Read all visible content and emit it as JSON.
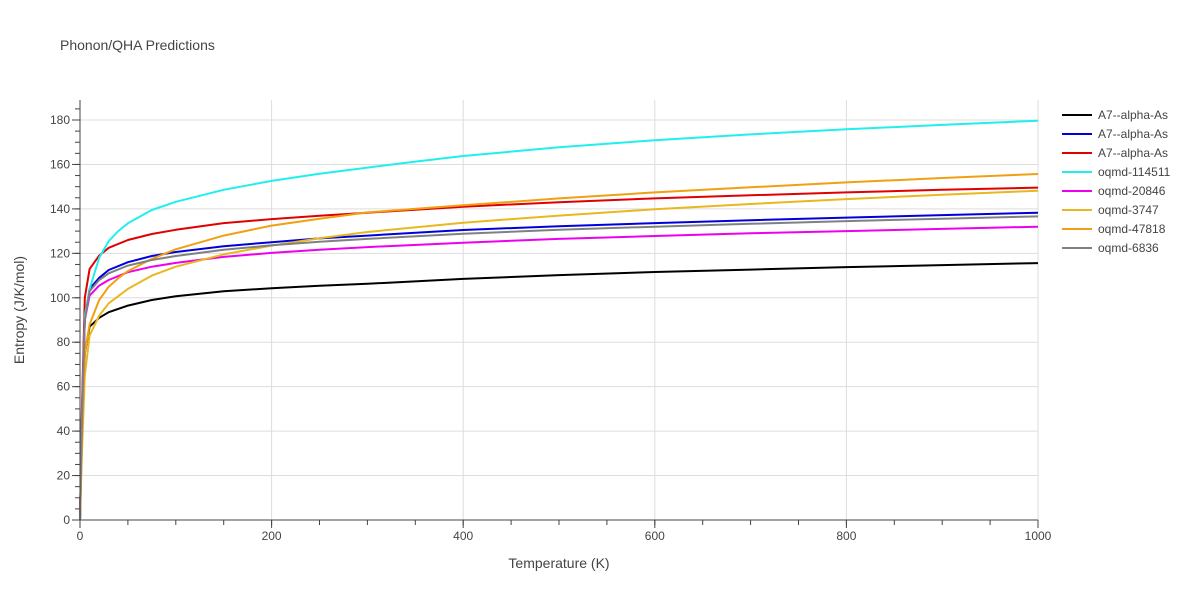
{
  "chart_data": {
    "type": "line",
    "title": "Phonon/QHA Predictions",
    "xlabel": "Temperature (K)",
    "ylabel": "Entropy (J/K/mol)",
    "xlim": [
      0,
      1000
    ],
    "ylim": [
      0,
      189
    ],
    "xticks": [
      0,
      200,
      400,
      600,
      800,
      1000
    ],
    "yticks": [
      0,
      20,
      40,
      60,
      80,
      100,
      120,
      140,
      160,
      180
    ],
    "grid": true,
    "legend_position": "right",
    "series": [
      {
        "name": "A7--alpha-As",
        "color": "#000000",
        "x": [
          0,
          2,
          5,
          10,
          20,
          30,
          50,
          75,
          100,
          150,
          200,
          250,
          300,
          400,
          500,
          600,
          700,
          800,
          900,
          1000
        ],
        "y": [
          0,
          40,
          75,
          87,
          91,
          93.5,
          96.5,
          99,
          100.7,
          102.9,
          104.3,
          105.4,
          106.3,
          108.5,
          110.2,
          111.6,
          112.7,
          113.8,
          114.7,
          115.6
        ]
      },
      {
        "name": "A7--alpha-As",
        "color": "#0000dd",
        "x": [
          0,
          2,
          5,
          10,
          20,
          30,
          50,
          75,
          100,
          150,
          200,
          250,
          300,
          400,
          500,
          600,
          700,
          800,
          900,
          1000
        ],
        "y": [
          0,
          45,
          90,
          104,
          109,
          112.5,
          116,
          118.8,
          120.6,
          123.2,
          125,
          126.7,
          128,
          130.5,
          132.2,
          133.6,
          134.9,
          136.1,
          137.2,
          138.3
        ]
      },
      {
        "name": "A7--alpha-As",
        "color": "#e00000",
        "x": [
          0,
          2,
          5,
          10,
          20,
          30,
          50,
          75,
          100,
          150,
          200,
          250,
          300,
          400,
          500,
          600,
          700,
          800,
          900,
          1000
        ],
        "y": [
          0,
          50,
          100,
          113,
          119,
          122.5,
          126,
          128.7,
          130.6,
          133.6,
          135.4,
          136.9,
          138.3,
          141,
          143,
          144.7,
          146.1,
          147.4,
          148.6,
          149.6
        ]
      },
      {
        "name": "oqmd-114511",
        "color": "#22eeee",
        "x": [
          0,
          2,
          5,
          10,
          20,
          30,
          40,
          50,
          75,
          100,
          150,
          200,
          250,
          300,
          350,
          400,
          500,
          600,
          700,
          800,
          900,
          1000
        ],
        "y": [
          0,
          45,
          92,
          104,
          118,
          125.5,
          130,
          133.5,
          139.5,
          143.2,
          148.6,
          152.6,
          155.8,
          158.6,
          161.3,
          163.8,
          167.7,
          170.9,
          173.5,
          175.8,
          177.8,
          179.7
        ]
      },
      {
        "name": "oqmd-20846",
        "color": "#ee00ee",
        "x": [
          0,
          2,
          5,
          10,
          20,
          30,
          50,
          75,
          100,
          150,
          200,
          250,
          300,
          400,
          500,
          600,
          700,
          800,
          900,
          1000
        ],
        "y": [
          0,
          45,
          90,
          101,
          105.5,
          108,
          111.5,
          114,
          115.7,
          118.4,
          120.2,
          121.6,
          122.8,
          124.8,
          126.5,
          127.8,
          129,
          130,
          131,
          132
        ]
      },
      {
        "name": "oqmd-3747",
        "color": "#e8b820",
        "x": [
          0,
          2,
          5,
          10,
          20,
          30,
          50,
          75,
          100,
          150,
          200,
          250,
          300,
          400,
          500,
          600,
          700,
          800,
          900,
          1000
        ],
        "y": [
          0,
          30,
          65,
          83,
          92,
          97.5,
          104,
          110,
          114,
          119.5,
          123.5,
          126.8,
          129.6,
          133.8,
          137,
          139.8,
          142.2,
          144.4,
          146.4,
          148.2
        ]
      },
      {
        "name": "oqmd-47818",
        "color": "#f0a010",
        "x": [
          0,
          2,
          5,
          10,
          20,
          30,
          40,
          50,
          75,
          100,
          150,
          200,
          250,
          300,
          400,
          500,
          600,
          700,
          800,
          900,
          1000
        ],
        "y": [
          0,
          35,
          75,
          88,
          99,
          105,
          108.8,
          112,
          117.5,
          121.8,
          128,
          132.5,
          135.6,
          138.4,
          141.6,
          144.7,
          147.4,
          149.7,
          151.9,
          153.9,
          155.7
        ]
      },
      {
        "name": "oqmd-6836",
        "color": "#808080",
        "x": [
          0,
          2,
          5,
          10,
          20,
          30,
          50,
          75,
          100,
          150,
          200,
          250,
          300,
          400,
          500,
          600,
          700,
          800,
          900,
          1000
        ],
        "y": [
          0,
          45,
          90,
          103,
          108,
          111,
          114.5,
          117,
          118.8,
          121.6,
          123.6,
          125.2,
          126.5,
          128.8,
          130.6,
          132,
          133.3,
          134.5,
          135.6,
          136.6
        ]
      }
    ]
  }
}
